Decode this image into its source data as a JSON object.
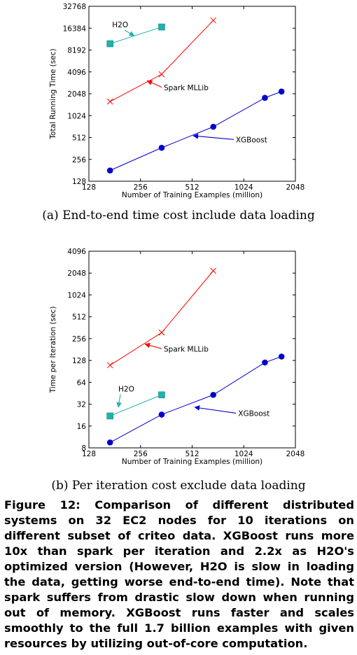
{
  "chart_data": [
    {
      "type": "line",
      "xlabel": "Number of Training Examples (million)",
      "ylabel": "Total Running Time (sec)",
      "x_scale": "log2",
      "y_scale": "log2",
      "xlim": [
        128,
        2048
      ],
      "ylim": [
        128,
        32768
      ],
      "xticks": [
        "128",
        "256",
        "512",
        "1024",
        "2048"
      ],
      "xtick_values": [
        128,
        256,
        512,
        1024,
        2048
      ],
      "yticks": [
        "128",
        "256",
        "512",
        "1024",
        "2048",
        "4096",
        "8192",
        "16384",
        "32768"
      ],
      "ytick_values": [
        128,
        256,
        512,
        1024,
        2048,
        4096,
        8192,
        16384,
        32768
      ],
      "series": [
        {
          "name": "H2O",
          "color": "#20b2aa",
          "marker": "square",
          "x": [
            170,
            340
          ],
          "y": [
            10000,
            17000
          ]
        },
        {
          "name": "Spark MLLib",
          "color": "#ff0000",
          "marker": "x",
          "x": [
            170,
            340,
            680
          ],
          "y": [
            1600,
            3800,
            21000
          ]
        },
        {
          "name": "XGBoost",
          "color": "#0000cc",
          "marker": "circle",
          "x": [
            170,
            340,
            680,
            1360,
            1700
          ],
          "y": [
            180,
            370,
            720,
            1800,
            2200
          ]
        }
      ],
      "annotations": [
        {
          "text": "H2O",
          "series": "H2O",
          "text_x": 175,
          "text_y": 16800,
          "arrow_x": 235,
          "arrow_y": 12800,
          "color": "#20b2aa"
        },
        {
          "text": "Spark MLLib",
          "series": "Spark MLLib",
          "text_x": 350,
          "text_y": 2300,
          "arrow_x": 280,
          "arrow_y": 3100,
          "color": "#ff0000"
        },
        {
          "text": "XGBoost",
          "series": "XGBoost",
          "text_x": 920,
          "text_y": 440,
          "arrow_x": 520,
          "arrow_y": 540,
          "color": "#0000cc"
        }
      ],
      "grid": false,
      "legend": "none"
    },
    {
      "type": "line",
      "xlabel": "Number of Training Examples (million)",
      "ylabel": "Time per Iteration (sec)",
      "x_scale": "log2",
      "y_scale": "log2",
      "xlim": [
        128,
        2048
      ],
      "ylim": [
        8,
        4096
      ],
      "xticks": [
        "128",
        "256",
        "512",
        "1024",
        "2048"
      ],
      "xtick_values": [
        128,
        256,
        512,
        1024,
        2048
      ],
      "yticks": [
        "8",
        "16",
        "32",
        "64",
        "128",
        "256",
        "512",
        "1024",
        "2048",
        "4096"
      ],
      "ytick_values": [
        8,
        16,
        32,
        64,
        128,
        256,
        512,
        1024,
        2048,
        4096
      ],
      "series": [
        {
          "name": "H2O",
          "color": "#20b2aa",
          "marker": "square",
          "x": [
            170,
            340
          ],
          "y": [
            22,
            43
          ]
        },
        {
          "name": "Spark MLLib",
          "color": "#ff0000",
          "marker": "x",
          "x": [
            170,
            340,
            680
          ],
          "y": [
            110,
            310,
            2200
          ]
        },
        {
          "name": "XGBoost",
          "color": "#0000cc",
          "marker": "circle",
          "x": [
            170,
            340,
            680,
            1360,
            1700
          ],
          "y": [
            9.5,
            23,
            43,
            120,
            145
          ]
        }
      ],
      "annotations": [
        {
          "text": "H2O",
          "series": "H2O",
          "text_x": 190,
          "text_y": 48,
          "arrow_x": 190,
          "arrow_y": 29,
          "color": "#20b2aa"
        },
        {
          "text": "Spark MLLib",
          "series": "Spark MLLib",
          "text_x": 350,
          "text_y": 170,
          "arrow_x": 272,
          "arrow_y": 215,
          "color": "#ff0000"
        },
        {
          "text": "XGBoost",
          "series": "XGBoost",
          "text_x": 950,
          "text_y": 22,
          "arrow_x": 530,
          "arrow_y": 29,
          "color": "#0000cc"
        }
      ],
      "grid": false,
      "legend": "none"
    }
  ],
  "subcaptions": {
    "a": "(a) End-to-end time cost include data loading",
    "b": "(b) Per iteration cost exclude data loading"
  },
  "caption": "Figure 12:  Comparison of different distributed systems on 32 EC2 nodes for 10 iterations on different subset of criteo data. XGBoost runs more 10x than spark per iteration and 2.2x as H2O's optimized version (However, H2O is slow in loading the data, getting worse end-to-end time). Note that spark suffers from drastic slow down when running out of memory. XGBoost runs faster and scales smoothly to the full 1.7 billion examples with given resources by utilizing out-of-core computation."
}
